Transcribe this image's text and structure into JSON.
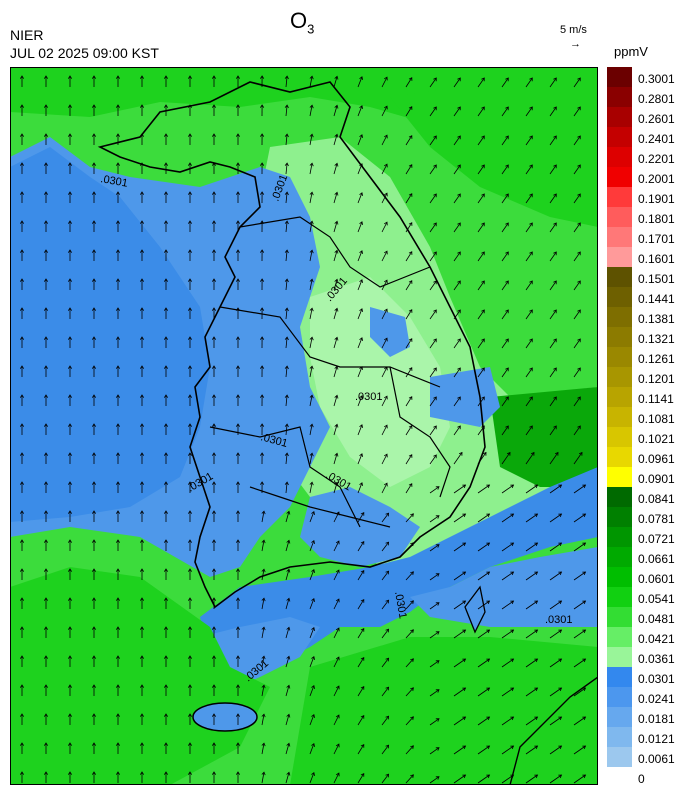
{
  "header": {
    "organization": "NIER",
    "timestamp": "JUL 02 2025 09:00 KST",
    "title_main": "O",
    "title_sub": "3",
    "wind_reference": "5 m/s",
    "wind_arrow": "→",
    "unit": "ppmV"
  },
  "map": {
    "contour_label": ".0301",
    "contour_labels_visible": 10
  },
  "legend": {
    "labels": [
      "0.3001",
      "0.2801",
      "0.2601",
      "0.2401",
      "0.2201",
      "0.2001",
      "0.1901",
      "0.1801",
      "0.1701",
      "0.1601",
      "0.1501",
      "0.1441",
      "0.1381",
      "0.1321",
      "0.1261",
      "0.1201",
      "0.1141",
      "0.1081",
      "0.1021",
      "0.0961",
      "0.0901",
      "0.0841",
      "0.0781",
      "0.0721",
      "0.0661",
      "0.0601",
      "0.0541",
      "0.0481",
      "0.0421",
      "0.0361",
      "0.0301",
      "0.0241",
      "0.0181",
      "0.0121",
      "0.0061",
      "0"
    ],
    "colors": [
      "#6b0000",
      "#8a0000",
      "#a80000",
      "#c40000",
      "#dd0000",
      "#f00000",
      "#ff3a3a",
      "#ff5c5c",
      "#ff7878",
      "#ff9a9a",
      "#5e5200",
      "#6e6000",
      "#7e6e00",
      "#8c7b00",
      "#9a8800",
      "#a89600",
      "#b8a400",
      "#c8b400",
      "#d8c600",
      "#e8d800",
      "#ffff00",
      "#006a00",
      "#008000",
      "#009600",
      "#00aa00",
      "#00be00",
      "#11d011",
      "#33dd33",
      "#66ee66",
      "#99f599",
      "#3388ee",
      "#4c97ee",
      "#66a8ee",
      "#7fb8ee",
      "#9cc8ee"
    ]
  },
  "colors": {
    "sea_blue": "#3b8ce8",
    "land_blue": "#4e98ea",
    "green_bright": "#1ed21e",
    "green_mid": "#3cdc3c",
    "green_light": "#8ef08e",
    "green_pale": "#aaf5aa",
    "green_dark": "#0aa80a"
  }
}
